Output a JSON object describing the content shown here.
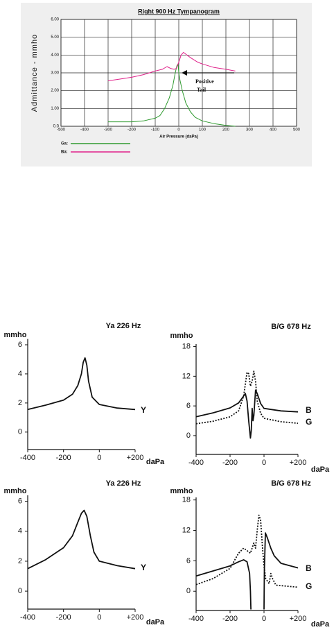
{
  "chart_data": [
    {
      "type": "line",
      "title": "Right 900 Hz Tympanogram",
      "y_label": "Admittance - mmho",
      "x_label": "Air Pressure (daPa)",
      "xlim": [
        -500,
        500
      ],
      "xticks": [
        -500,
        -400,
        -300,
        -200,
        -100,
        0,
        100,
        200,
        300,
        400,
        500
      ],
      "ylim": [
        0,
        6
      ],
      "yticks": [
        {
          "value": 0,
          "label": "0.0"
        },
        {
          "value": 1,
          "label": "1.00"
        },
        {
          "value": 2,
          "label": "2.00"
        },
        {
          "value": 3,
          "label": "3.00"
        },
        {
          "value": 4,
          "label": "4.00"
        },
        {
          "value": 5,
          "label": "5.00"
        },
        {
          "value": 6,
          "label": "6.00"
        }
      ],
      "grid": true,
      "legend": "bottom-left",
      "annotation": [
        "Positive",
        "Tail"
      ],
      "series": [
        {
          "name": "Ga:",
          "color": "#2e9a2e",
          "x": [
            -300,
            -200,
            -150,
            -100,
            -80,
            -60,
            -40,
            -25,
            -15,
            -8,
            -3,
            0,
            5,
            15,
            30,
            50,
            70,
            100,
            150,
            200,
            240
          ],
          "values": [
            0.25,
            0.25,
            0.3,
            0.45,
            0.6,
            1.0,
            1.6,
            2.3,
            3.0,
            3.4,
            3.5,
            3.0,
            2.6,
            2.0,
            1.3,
            0.8,
            0.5,
            0.3,
            0.15,
            0.05,
            0.0
          ]
        },
        {
          "name": "Ba:",
          "color": "#e0208a",
          "x": [
            -300,
            -250,
            -200,
            -150,
            -100,
            -70,
            -50,
            -35,
            -20,
            -10,
            0,
            10,
            20,
            30,
            50,
            80,
            100,
            150,
            200,
            240
          ],
          "values": [
            2.55,
            2.65,
            2.75,
            2.9,
            3.1,
            3.2,
            3.35,
            3.25,
            3.2,
            3.25,
            3.6,
            4.0,
            4.15,
            4.05,
            3.85,
            3.6,
            3.5,
            3.3,
            3.2,
            3.1
          ]
        }
      ]
    },
    {
      "type": "line",
      "title": "Ya 226 Hz",
      "y_label": "mmho",
      "x_label": "daPa",
      "xlim": [
        -400,
        200
      ],
      "xticks": [
        -400,
        -200,
        0,
        {
          "value": 200,
          "label": "+200"
        }
      ],
      "ylim": [
        -1.2,
        6.4
      ],
      "yticks": [
        0,
        2,
        4,
        6
      ],
      "grid": false,
      "series": [
        {
          "name": "Y",
          "color": "#111111",
          "style": "solid",
          "x": [
            -400,
            -300,
            -200,
            -150,
            -120,
            -100,
            -90,
            -80,
            -70,
            -60,
            -40,
            0,
            100,
            200
          ],
          "values": [
            1.55,
            1.85,
            2.2,
            2.6,
            3.2,
            4.0,
            4.8,
            5.1,
            4.6,
            3.5,
            2.4,
            1.9,
            1.65,
            1.55
          ]
        }
      ]
    },
    {
      "type": "line",
      "title": "B/G   678 Hz",
      "y_label": "mmho",
      "x_label": "daPa",
      "xlim": [
        -400,
        200
      ],
      "xticks": [
        -400,
        -200,
        0,
        {
          "value": 200,
          "label": "+200"
        }
      ],
      "ylim": [
        -3.8,
        18.5
      ],
      "yticks": [
        0,
        6,
        12,
        18
      ],
      "grid": false,
      "series": [
        {
          "name": "B",
          "color": "#111111",
          "style": "solid",
          "x": [
            -400,
            -300,
            -200,
            -150,
            -120,
            -110,
            -100,
            -90,
            -80,
            -75,
            -70,
            -65,
            -60,
            -50,
            -40,
            -20,
            0,
            100,
            200
          ],
          "values": [
            3.8,
            4.6,
            5.6,
            6.6,
            8.0,
            8.5,
            7.0,
            3.0,
            -0.5,
            1.0,
            5.5,
            3.0,
            4.0,
            9.2,
            8.5,
            6.5,
            5.5,
            5.0,
            4.8
          ]
        },
        {
          "name": "G",
          "color": "#111111",
          "style": "dotted",
          "x": [
            -400,
            -300,
            -200,
            -150,
            -120,
            -100,
            -90,
            -80,
            -70,
            -60,
            -50,
            -40,
            -20,
            0,
            100,
            200
          ],
          "values": [
            2.4,
            2.9,
            3.8,
            5.0,
            8.0,
            12.8,
            12.5,
            10.0,
            11.0,
            13.0,
            11.0,
            7.0,
            4.5,
            3.5,
            2.8,
            2.5
          ]
        }
      ]
    },
    {
      "type": "line",
      "title": "Ya 226 Hz",
      "y_label": "mmho",
      "x_label": "daPa",
      "xlim": [
        -400,
        200
      ],
      "xticks": [
        -400,
        -200,
        0,
        {
          "value": 200,
          "label": "+200"
        }
      ],
      "ylim": [
        -1.2,
        6.4
      ],
      "yticks": [
        0,
        2,
        4,
        6
      ],
      "grid": false,
      "series": [
        {
          "name": "Y",
          "color": "#111111",
          "style": "solid",
          "x": [
            -400,
            -300,
            -200,
            -150,
            -120,
            -100,
            -85,
            -70,
            -50,
            -30,
            0,
            100,
            200
          ],
          "values": [
            1.5,
            2.1,
            2.9,
            3.7,
            4.6,
            5.2,
            5.4,
            5.0,
            3.7,
            2.6,
            2.0,
            1.7,
            1.5
          ]
        }
      ]
    },
    {
      "type": "line",
      "title": "B/G   678 Hz",
      "y_label": "mmho",
      "x_label": "daPa",
      "xlim": [
        -400,
        200
      ],
      "xticks": [
        -400,
        -200,
        0,
        {
          "value": 200,
          "label": "+200"
        }
      ],
      "ylim": [
        -3.8,
        18.5
      ],
      "yticks": [
        0,
        6,
        12,
        18
      ],
      "grid": false,
      "series": [
        {
          "name": "B",
          "color": "#111111",
          "style": "solid",
          "x": [
            -400,
            -300,
            -200,
            -150,
            -120,
            -100,
            -85,
            -80,
            -77,
            -40,
            0,
            2,
            8,
            20,
            40,
            60,
            100,
            200
          ],
          "values": [
            3.0,
            4.0,
            5.0,
            5.8,
            6.2,
            5.8,
            3.5,
            0,
            -3.6,
            null,
            -3.6,
            4,
            11.5,
            10.5,
            8.5,
            7,
            5.5,
            4.6
          ]
        },
        {
          "name": "G",
          "color": "#111111",
          "style": "dotted",
          "x": [
            -400,
            -300,
            -200,
            -150,
            -120,
            -100,
            -80,
            -60,
            -50,
            -40,
            -30,
            -20,
            -10,
            0,
            10,
            30,
            40,
            50,
            70,
            200
          ],
          "values": [
            1.3,
            2.5,
            4.5,
            7.5,
            8.5,
            8.0,
            7.5,
            9.5,
            8.5,
            12,
            15,
            14,
            9,
            5,
            2.5,
            1.5,
            3.5,
            2.5,
            1.2,
            0.8
          ]
        }
      ]
    }
  ]
}
